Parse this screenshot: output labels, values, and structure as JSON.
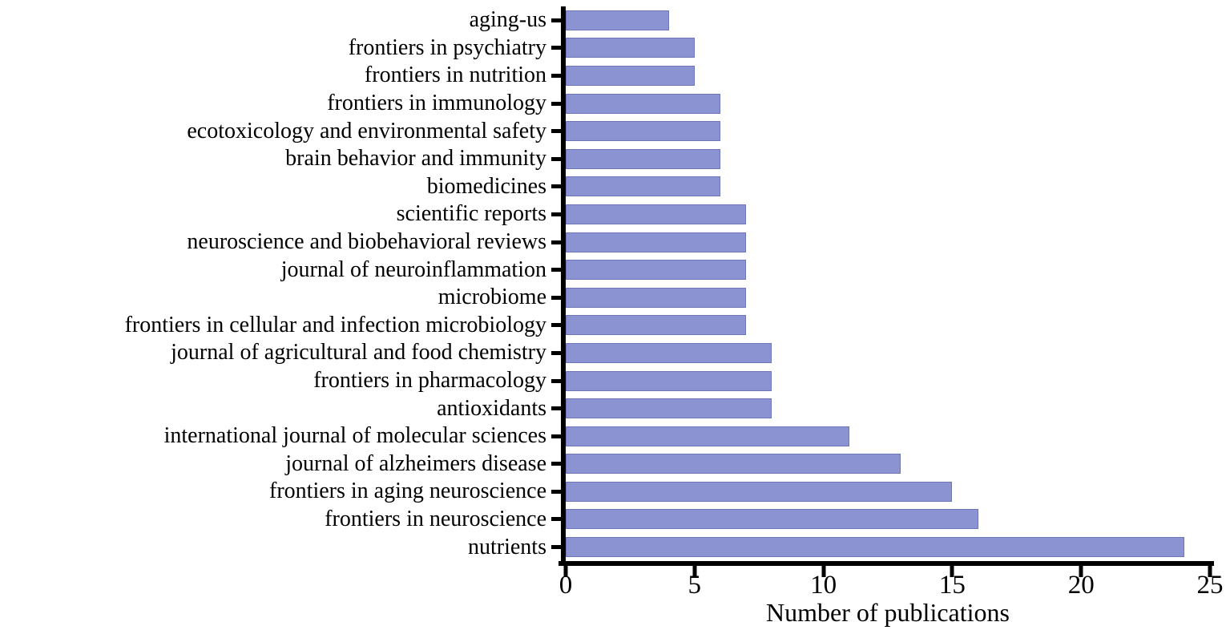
{
  "chart_data": {
    "type": "bar",
    "orientation": "horizontal",
    "title": "",
    "xlabel": "Number of publications",
    "ylabel": "",
    "categories": [
      "aging-us",
      "frontiers in psychiatry",
      "frontiers in nutrition",
      "frontiers in immunology",
      "ecotoxicology and environmental safety",
      "brain behavior and immunity",
      "biomedicines",
      "scientific reports",
      "neuroscience and biobehavioral reviews",
      "journal of neuroinflammation",
      "microbiome",
      "frontiers in cellular and infection microbiology",
      "journal of agricultural and food chemistry",
      "frontiers in pharmacology",
      "antioxidants",
      "international journal of molecular sciences",
      "journal of alzheimers disease",
      "frontiers in aging neuroscience",
      "frontiers in neuroscience",
      "nutrients"
    ],
    "values": [
      4,
      5,
      5,
      6,
      6,
      6,
      6,
      7,
      7,
      7,
      7,
      7,
      8,
      8,
      8,
      11,
      13,
      15,
      16,
      24
    ],
    "xlim": [
      0,
      25
    ],
    "xticks": [
      0,
      5,
      10,
      15,
      20,
      25
    ],
    "grid": false,
    "legend_position": "none",
    "bar_color": "#8b93d2",
    "bar_border_color": "#6e76b8",
    "axis_color": "#000000"
  }
}
